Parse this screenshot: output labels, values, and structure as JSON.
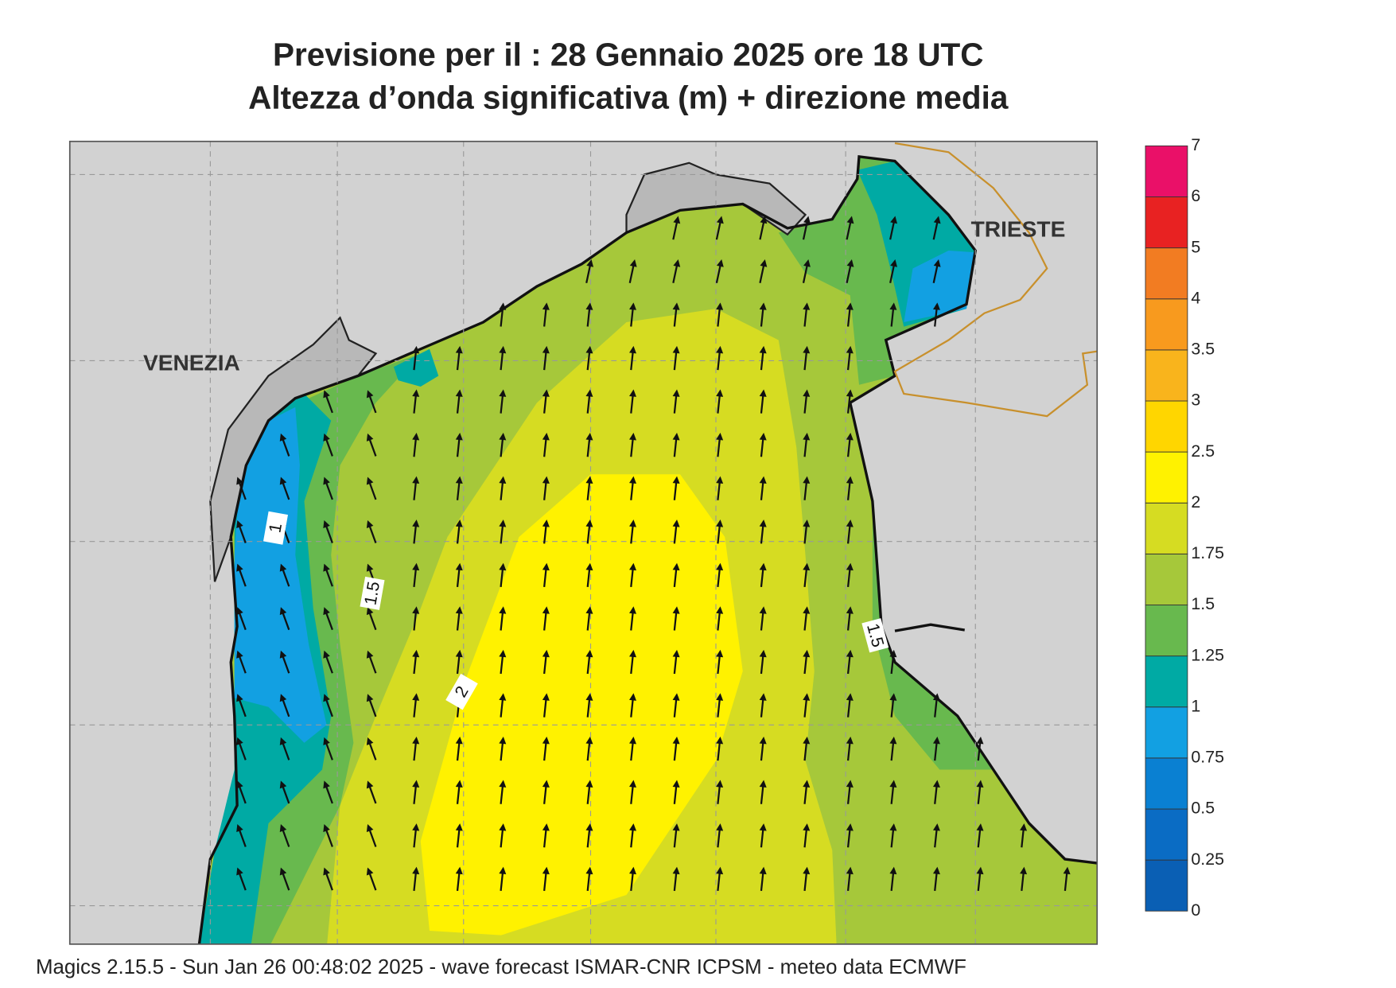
{
  "header": {
    "title": "Previsione per il  :  28  Gennaio  2025   ore 18 UTC",
    "subtitle": "Altezza d’onda significativa (m) + direzione media"
  },
  "places": [
    {
      "label": "VENEZIA"
    },
    {
      "label": "TRIESTE"
    }
  ],
  "contour_labels": [
    1,
    1.5,
    2,
    1.5
  ],
  "legend": {
    "levels": [
      0,
      0.25,
      0.5,
      0.75,
      1,
      1.25,
      1.5,
      1.75,
      2,
      2.5,
      3,
      3.5,
      4,
      5,
      6,
      7
    ],
    "colors": [
      "#0a5fb4",
      "#0a6cc4",
      "#0a80d2",
      "#12a0e2",
      "#00aaa4",
      "#68b94e",
      "#a6c83a",
      "#d6dc22",
      "#fff200",
      "#ffd600",
      "#f9b41c",
      "#f89a1e",
      "#f27c22",
      "#e82222",
      "#ea1068"
    ]
  },
  "footer": "Magics 2.15.5 - Sun Jan 26 00:48:02 2025 - wave forecast  ISMAR-CNR  ICPSM - meteo data    ECMWF"
}
